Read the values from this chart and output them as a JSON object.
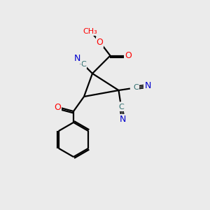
{
  "bg_color": "#ebebeb",
  "bond_color": "#000000",
  "atom_colors": {
    "C": "#2f6e6e",
    "N": "#0000cd",
    "O": "#ff0000",
    "CH3": "#ff0000"
  },
  "figsize": [
    3.0,
    3.0
  ],
  "dpi": 100
}
